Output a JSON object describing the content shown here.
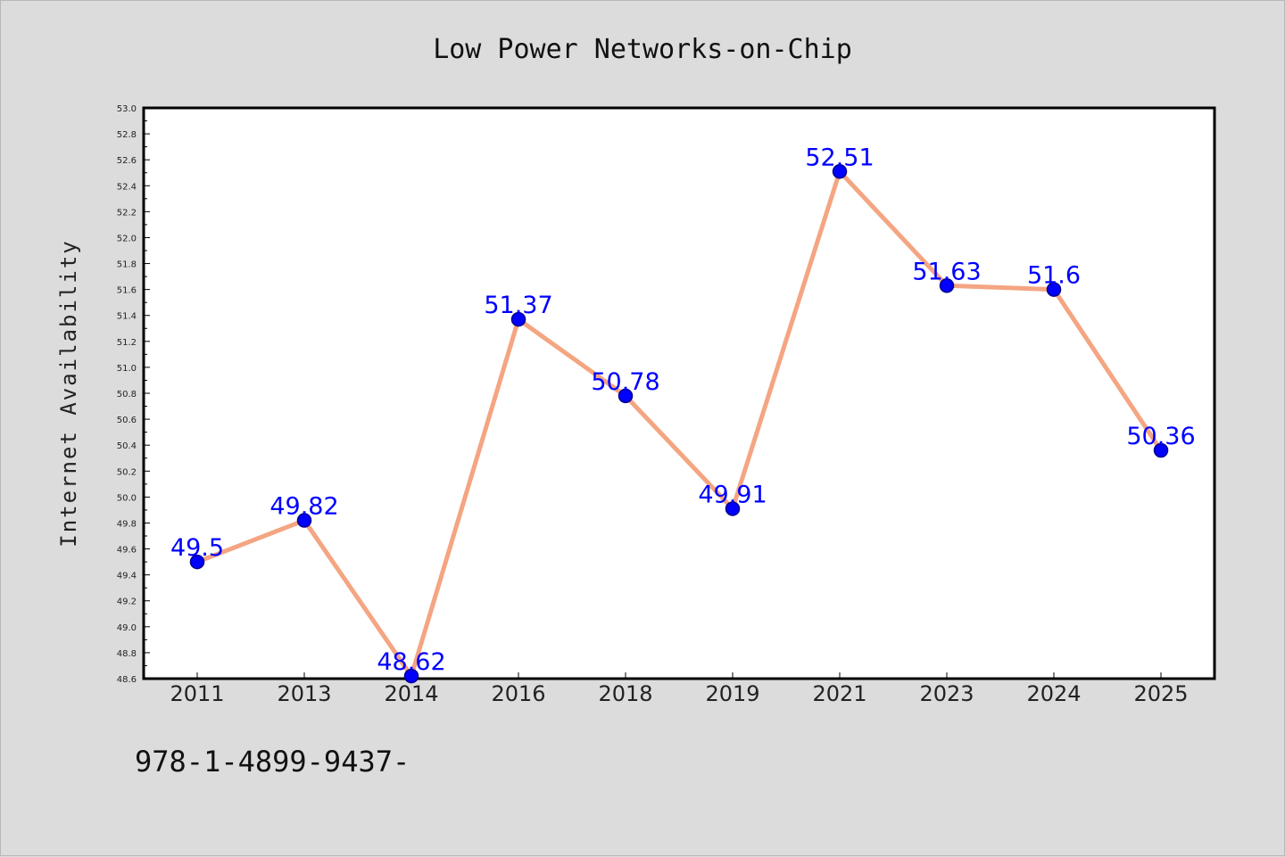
{
  "chart_data": {
    "type": "line",
    "title": "Low Power Networks-on-Chip",
    "xlabel": "",
    "ylabel": "Internet Availability",
    "categories": [
      "2011",
      "2013",
      "2014",
      "2016",
      "2018",
      "2019",
      "2021",
      "2023",
      "2024",
      "2025"
    ],
    "series": [
      {
        "values": [
          49.5,
          49.82,
          48.62,
          51.37,
          50.78,
          49.91,
          52.51,
          51.63,
          51.6,
          50.36
        ],
        "data_labels": [
          "49.5",
          "49.82",
          "48.62",
          "51.37",
          "50.78",
          "49.91",
          "52.51",
          "51.63",
          "51.6",
          "50.36"
        ]
      }
    ],
    "ylim": [
      48.6,
      53.0
    ],
    "yticks": [
      "48.6",
      "48.8",
      "49.0",
      "49.2",
      "49.4",
      "49.6",
      "49.8",
      "50.0",
      "50.2",
      "50.4",
      "50.6",
      "50.8",
      "51.0",
      "51.2",
      "51.4",
      "51.6",
      "51.8",
      "52.0",
      "52.2",
      "52.4",
      "52.6",
      "52.8",
      "53.0"
    ],
    "grid": false,
    "legend": "none",
    "colors": {
      "line": "#f4a582",
      "marker": "#0000ff",
      "marker_edge": "#00008b",
      "data_label": "#0000ff",
      "background": "#dcdcdc",
      "plot_background": "#ffffff"
    }
  },
  "footer": {
    "text": "978-1-4899-9437-"
  }
}
